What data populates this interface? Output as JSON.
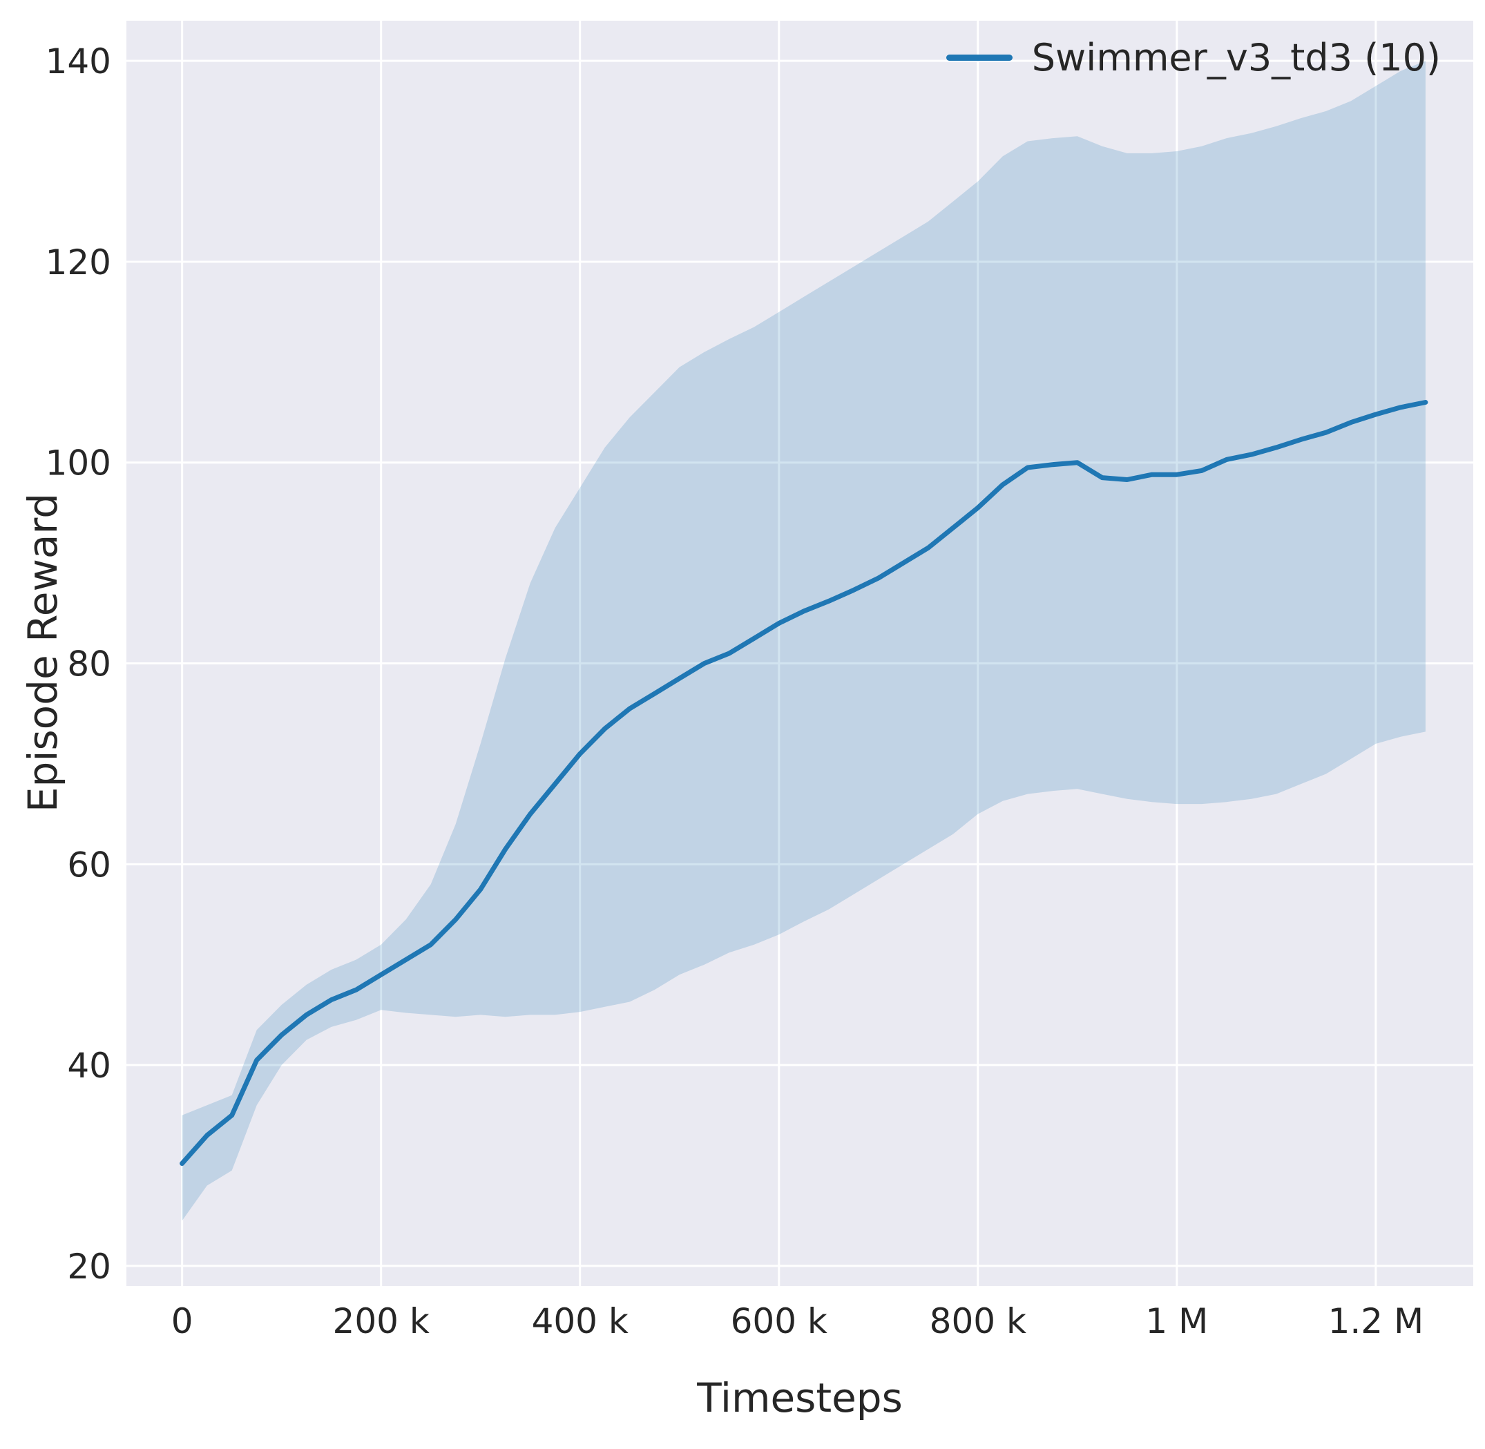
{
  "colors": {
    "accent": "#1f77b4",
    "axes_background": "#eaeaf2",
    "grid": "#ffffff",
    "text": "#262626"
  },
  "chart_data": {
    "type": "line",
    "title": "",
    "xlabel": "Timesteps",
    "ylabel": "Episode Reward",
    "grid": true,
    "legend_position": "upper right",
    "legend": [
      {
        "label": "Swimmer_v3_td3 (10)",
        "color": "#1f77b4"
      }
    ],
    "xlim": [
      -56000,
      1298000
    ],
    "ylim": [
      18,
      144
    ],
    "x_ticks": [
      {
        "value": 0,
        "label": "0"
      },
      {
        "value": 200000,
        "label": "200 k"
      },
      {
        "value": 400000,
        "label": "400 k"
      },
      {
        "value": 600000,
        "label": "600 k"
      },
      {
        "value": 800000,
        "label": "800 k"
      },
      {
        "value": 1000000,
        "label": "1 M"
      },
      {
        "value": 1200000,
        "label": "1.2 M"
      }
    ],
    "y_ticks": [
      {
        "value": 20,
        "label": "20"
      },
      {
        "value": 40,
        "label": "40"
      },
      {
        "value": 60,
        "label": "60"
      },
      {
        "value": 80,
        "label": "80"
      },
      {
        "value": 100,
        "label": "100"
      },
      {
        "value": 120,
        "label": "120"
      },
      {
        "value": 140,
        "label": "140"
      }
    ],
    "x": [
      0,
      25000,
      50000,
      75000,
      100000,
      125000,
      150000,
      175000,
      200000,
      225000,
      250000,
      275000,
      300000,
      325000,
      350000,
      375000,
      400000,
      425000,
      450000,
      475000,
      500000,
      525000,
      550000,
      575000,
      600000,
      625000,
      650000,
      675000,
      700000,
      725000,
      750000,
      775000,
      800000,
      825000,
      850000,
      875000,
      900000,
      925000,
      950000,
      975000,
      1000000,
      1025000,
      1050000,
      1075000,
      1100000,
      1125000,
      1150000,
      1175000,
      1200000,
      1225000,
      1250000
    ],
    "series": [
      {
        "name": "Swimmer_v3_td3 (10)",
        "mean": [
          30.2,
          33.0,
          35.0,
          40.5,
          43.0,
          45.0,
          46.5,
          47.5,
          49.0,
          50.5,
          52.0,
          54.5,
          57.5,
          61.5,
          65.0,
          68.0,
          71.0,
          73.5,
          75.5,
          77.0,
          78.5,
          80.0,
          81.0,
          82.5,
          84.0,
          85.2,
          86.2,
          87.3,
          88.5,
          90.0,
          91.5,
          93.5,
          95.5,
          97.8,
          99.5,
          99.8,
          100.0,
          98.5,
          98.3,
          98.8,
          98.8,
          99.2,
          100.3,
          100.8,
          101.5,
          102.3,
          103.0,
          104.0,
          104.8,
          105.5,
          106.0
        ],
        "band_lower": [
          24.5,
          28.0,
          29.5,
          36.0,
          40.0,
          42.5,
          43.8,
          44.5,
          45.5,
          45.2,
          45.0,
          44.8,
          45.0,
          44.8,
          45.0,
          45.0,
          45.3,
          45.8,
          46.3,
          47.5,
          49.0,
          50.0,
          51.2,
          52.0,
          53.0,
          54.3,
          55.5,
          57.0,
          58.5,
          60.0,
          61.5,
          63.0,
          65.0,
          66.3,
          67.0,
          67.3,
          67.5,
          67.0,
          66.5,
          66.2,
          66.0,
          66.0,
          66.2,
          66.5,
          67.0,
          68.0,
          69.0,
          70.5,
          72.0,
          72.7,
          73.2
        ],
        "band_upper": [
          35.0,
          36.0,
          37.0,
          43.5,
          46.0,
          48.0,
          49.5,
          50.5,
          52.0,
          54.5,
          58.0,
          64.0,
          72.0,
          80.5,
          88.0,
          93.5,
          97.5,
          101.5,
          104.5,
          107.0,
          109.5,
          111.0,
          112.3,
          113.5,
          115.0,
          116.5,
          118.0,
          119.5,
          121.0,
          122.5,
          124.0,
          126.0,
          128.0,
          130.5,
          132.0,
          132.3,
          132.5,
          131.5,
          130.8,
          130.8,
          131.0,
          131.5,
          132.3,
          132.8,
          133.5,
          134.3,
          135.0,
          136.0,
          137.5,
          139.0,
          140.0
        ]
      }
    ]
  }
}
